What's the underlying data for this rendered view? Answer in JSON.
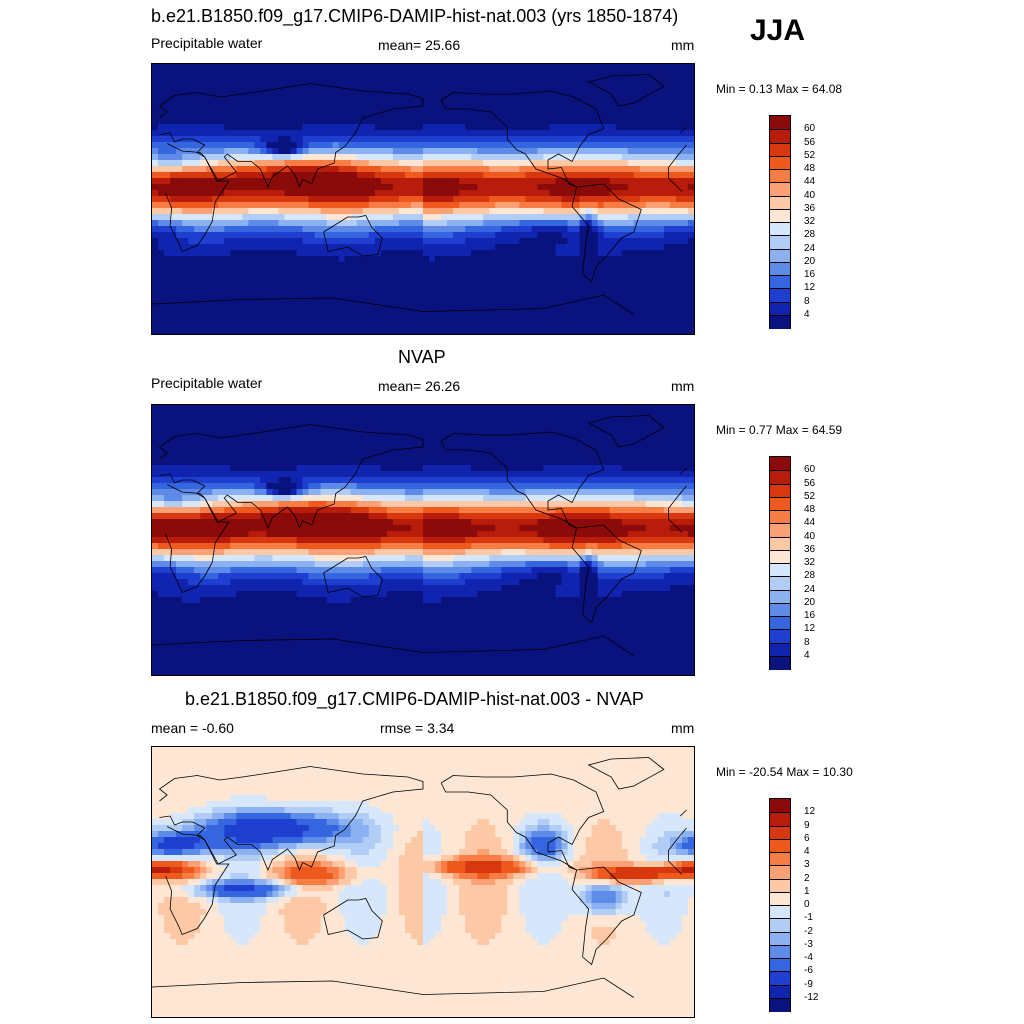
{
  "season": "JJA",
  "panels": [
    {
      "id": "model",
      "title": "b.e21.B1850.f09_g17.CMIP6-DAMIP-hist-nat.003 (yrs 1850-1874)",
      "left_label": "Precipitable water",
      "center_label": "mean=  25.66",
      "units": "mm",
      "minmax": "Min =   0.13 Max =  64.08",
      "colorbar": {
        "ticks": [
          "60",
          "56",
          "52",
          "48",
          "44",
          "40",
          "36",
          "32",
          "28",
          "24",
          "20",
          "16",
          "12",
          "8",
          "4"
        ],
        "colors": [
          "#8b0a0a",
          "#b81d0c",
          "#d8380f",
          "#ee5a1e",
          "#f77d45",
          "#fca175",
          "#fdc8a6",
          "#fde6d4",
          "#d6e6fb",
          "#b1cdf6",
          "#8cb1f1",
          "#5f8be8",
          "#3566e0",
          "#1e3fcf",
          "#1024b0",
          "#0a127e"
        ]
      },
      "map": {
        "style": "pw",
        "itcz_shift": 0,
        "wet": 1.0
      }
    },
    {
      "id": "obs",
      "title": "NVAP",
      "left_label": "Precipitable water",
      "center_label": "mean=  26.26",
      "units": "mm",
      "minmax": "Min =   0.77 Max =  64.59",
      "colorbar": {
        "ticks": [
          "60",
          "56",
          "52",
          "48",
          "44",
          "40",
          "36",
          "32",
          "28",
          "24",
          "20",
          "16",
          "12",
          "8",
          "4"
        ],
        "colors": [
          "#8b0a0a",
          "#b81d0c",
          "#d8380f",
          "#ee5a1e",
          "#f77d45",
          "#fca175",
          "#fdc8a6",
          "#fde6d4",
          "#d6e6fb",
          "#b1cdf6",
          "#8cb1f1",
          "#5f8be8",
          "#3566e0",
          "#1e3fcf",
          "#1024b0",
          "#0a127e"
        ]
      },
      "map": {
        "style": "pw",
        "itcz_shift": 0,
        "wet": 1.03
      }
    },
    {
      "id": "diff",
      "title": "b.e21.B1850.f09_g17.CMIP6-DAMIP-hist-nat.003 - NVAP",
      "left_label": "mean =  -0.60",
      "center_label": "rmse =   3.34",
      "units": "mm",
      "minmax": "Min = -20.54 Max =  10.30",
      "colorbar": {
        "ticks": [
          "12",
          "9",
          "6",
          "4",
          "3",
          "2",
          "1",
          "0",
          "-1",
          "-2",
          "-3",
          "-4",
          "-6",
          "-9",
          "-12"
        ],
        "colors": [
          "#8b0a0a",
          "#b81d0c",
          "#d8380f",
          "#ee5a1e",
          "#f77d45",
          "#fca175",
          "#fdc8a6",
          "#fde6d4",
          "#d6e6fb",
          "#b1cdf6",
          "#8cb1f1",
          "#5f8be8",
          "#3566e0",
          "#1e3fcf",
          "#1024b0",
          "#0a127e"
        ]
      },
      "map": {
        "style": "diff"
      }
    }
  ]
}
